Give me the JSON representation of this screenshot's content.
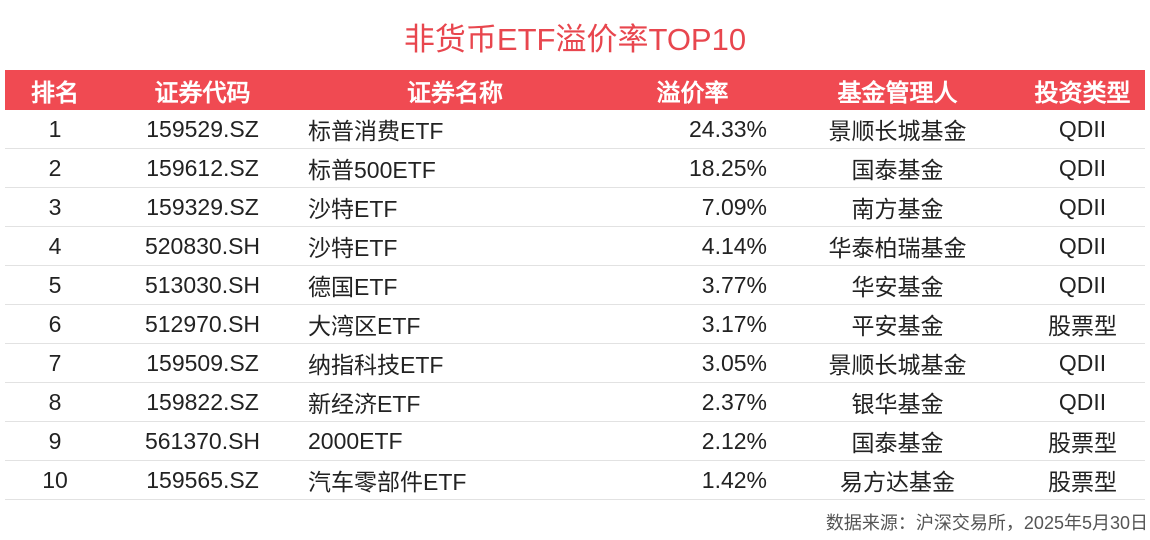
{
  "title": "非货币ETF溢价率TOP10",
  "table": {
    "headers": [
      "排名",
      "证券代码",
      "证券名称",
      "溢价率",
      "基金管理人",
      "投资类型"
    ],
    "rows": [
      [
        "1",
        "159529.SZ",
        "标普消费ETF",
        "24.33%",
        "景顺长城基金",
        "QDII"
      ],
      [
        "2",
        "159612.SZ",
        "标普500ETF",
        "18.25%",
        "国泰基金",
        "QDII"
      ],
      [
        "3",
        "159329.SZ",
        "沙特ETF",
        "7.09%",
        "南方基金",
        "QDII"
      ],
      [
        "4",
        "520830.SH",
        "沙特ETF",
        "4.14%",
        "华泰柏瑞基金",
        "QDII"
      ],
      [
        "5",
        "513030.SH",
        "德国ETF",
        "3.77%",
        "华安基金",
        "QDII"
      ],
      [
        "6",
        "512970.SH",
        "大湾区ETF",
        "3.17%",
        "平安基金",
        "股票型"
      ],
      [
        "7",
        "159509.SZ",
        "纳指科技ETF",
        "3.05%",
        "景顺长城基金",
        "QDII"
      ],
      [
        "8",
        "159822.SZ",
        "新经济ETF",
        "2.37%",
        "银华基金",
        "QDII"
      ],
      [
        "9",
        "561370.SH",
        "2000ETF",
        "2.12%",
        "国泰基金",
        "股票型"
      ],
      [
        "10",
        "159565.SZ",
        "汽车零部件ETF",
        "1.42%",
        "易方达基金",
        "股票型"
      ]
    ]
  },
  "source": "数据来源：沪深交易所，2025年5月30日"
}
